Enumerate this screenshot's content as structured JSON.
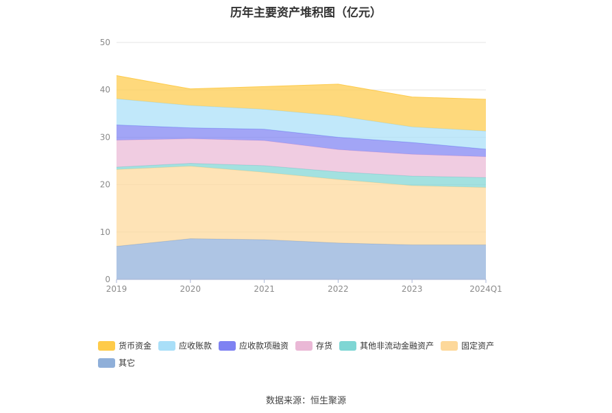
{
  "chart_data": {
    "type": "area",
    "stacked": true,
    "title": "历年主要资产堆积图（亿元）",
    "categories": [
      "2019",
      "2020",
      "2021",
      "2022",
      "2023",
      "2024Q1"
    ],
    "ylim": [
      0,
      50
    ],
    "yticks": [
      0,
      10,
      20,
      30,
      40,
      50
    ],
    "grid": true,
    "legend_position": "bottom",
    "series": [
      {
        "name": "其它",
        "color": "#8fafd9",
        "values": [
          7.0,
          8.6,
          8.4,
          7.7,
          7.3,
          7.3
        ]
      },
      {
        "name": "固定资产",
        "color": "#fdd89a",
        "values": [
          16.2,
          15.3,
          14.2,
          13.4,
          12.5,
          12.1
        ]
      },
      {
        "name": "其他非流动金融资产",
        "color": "#7fd6d4",
        "values": [
          0.5,
          0.6,
          1.4,
          1.6,
          2.0,
          2.1
        ]
      },
      {
        "name": "存货",
        "color": "#eab8d6",
        "values": [
          5.7,
          5.2,
          5.3,
          4.7,
          4.6,
          4.4
        ]
      },
      {
        "name": "应收款项融资",
        "color": "#7e82f2",
        "values": [
          3.2,
          2.3,
          2.4,
          2.6,
          2.5,
          1.6
        ]
      },
      {
        "name": "应收账款",
        "color": "#a9dff8",
        "values": [
          5.5,
          4.7,
          4.2,
          4.5,
          3.3,
          3.8
        ]
      },
      {
        "name": "货币资金",
        "color": "#fecb4a",
        "values": [
          4.9,
          3.5,
          4.8,
          6.7,
          6.3,
          6.7
        ]
      }
    ],
    "legend_order": [
      "货币资金",
      "应收账款",
      "应收款项融资",
      "存货",
      "其他非流动金融资产",
      "固定资产",
      "其它"
    ]
  },
  "source": "数据来源：恒生聚源"
}
